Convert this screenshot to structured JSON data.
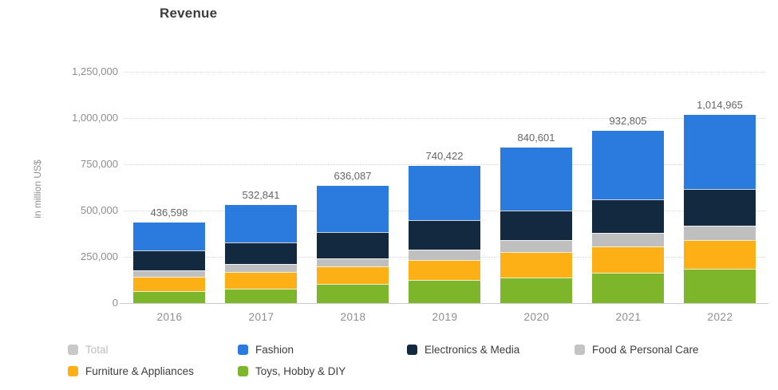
{
  "header": {
    "title": "Revenue"
  },
  "chart_data": {
    "type": "bar",
    "stacked": true,
    "title": "Revenue",
    "xlabel": "",
    "ylabel": "in million US$",
    "categories": [
      "2016",
      "2017",
      "2018",
      "2019",
      "2020",
      "2021",
      "2022"
    ],
    "totals": [
      436598,
      532841,
      636087,
      740422,
      840601,
      932805,
      1014965
    ],
    "total_labels": [
      "436,598",
      "532,841",
      "636,087",
      "740,422",
      "840,601",
      "932,805",
      "1,014,965"
    ],
    "stack_order": "bottom-to-top",
    "series": [
      {
        "name": "Toys, Hobby & DIY",
        "color": "#7db52b",
        "values": [
          67000,
          78000,
          104000,
          127000,
          137000,
          166000,
          187000
        ]
      },
      {
        "name": "Furniture & Appliances",
        "color": "#fcb016",
        "values": [
          76000,
          91000,
          95000,
          107000,
          141000,
          140000,
          153000
        ]
      },
      {
        "name": "Food & Personal Care",
        "color": "#bfbfbf",
        "values": [
          35000,
          41000,
          44000,
          55000,
          61000,
          72000,
          77000
        ]
      },
      {
        "name": "Electronics & Media",
        "color": "#13293f",
        "values": [
          109000,
          120000,
          142000,
          159000,
          160000,
          182000,
          199000
        ]
      },
      {
        "name": "Fashion",
        "color": "#2b7ade",
        "values": [
          150000,
          202000,
          251000,
          292000,
          341000,
          373000,
          399000
        ]
      }
    ],
    "ylim": [
      0,
      1250000
    ],
    "ytick_step": 250000,
    "ytick_labels": [
      "0",
      "250,000",
      "500,000",
      "750,000",
      "1,000,000",
      "1,250,000"
    ],
    "grid": "horizontal dotted",
    "legend_position": "bottom"
  },
  "legend": {
    "items": [
      {
        "label": "Total",
        "color": "#c9c9c9",
        "active": false
      },
      {
        "label": "Fashion",
        "color": "#2b7ade",
        "active": true
      },
      {
        "label": "Electronics & Media",
        "color": "#13293f",
        "active": true
      },
      {
        "label": "Food & Personal Care",
        "color": "#c3c3c3",
        "active": true
      },
      {
        "label": "Furniture & Appliances",
        "color": "#fcb016",
        "active": true
      },
      {
        "label": "Toys, Hobby & DIY",
        "color": "#7db52b",
        "active": true
      }
    ]
  }
}
